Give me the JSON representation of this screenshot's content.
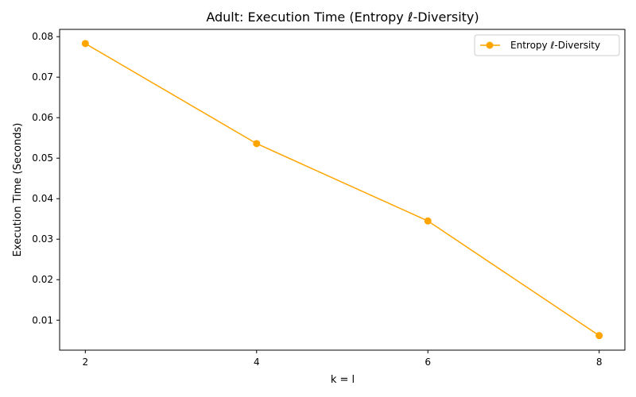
{
  "chart_data": {
    "type": "line",
    "title": "Adult: Execution Time (Entropy ℓ-Diversity)",
    "xlabel": "k = l",
    "ylabel": "Execution Time (Seconds)",
    "x": [
      2,
      4,
      6,
      8
    ],
    "x_ticks": [
      "2",
      "4",
      "6",
      "8"
    ],
    "y_ticks": [
      "0.01",
      "0.02",
      "0.03",
      "0.04",
      "0.05",
      "0.06",
      "0.07",
      "0.08"
    ],
    "xlim": [
      1.7,
      8.3
    ],
    "ylim": [
      0.0026,
      0.0818
    ],
    "grid": false,
    "legend_position": "top-right",
    "series": [
      {
        "name": "Entropy ℓ-Diversity",
        "color": "#FFA500",
        "marker": "circle",
        "values": [
          0.0783,
          0.0536,
          0.0345,
          0.0062
        ]
      }
    ]
  }
}
